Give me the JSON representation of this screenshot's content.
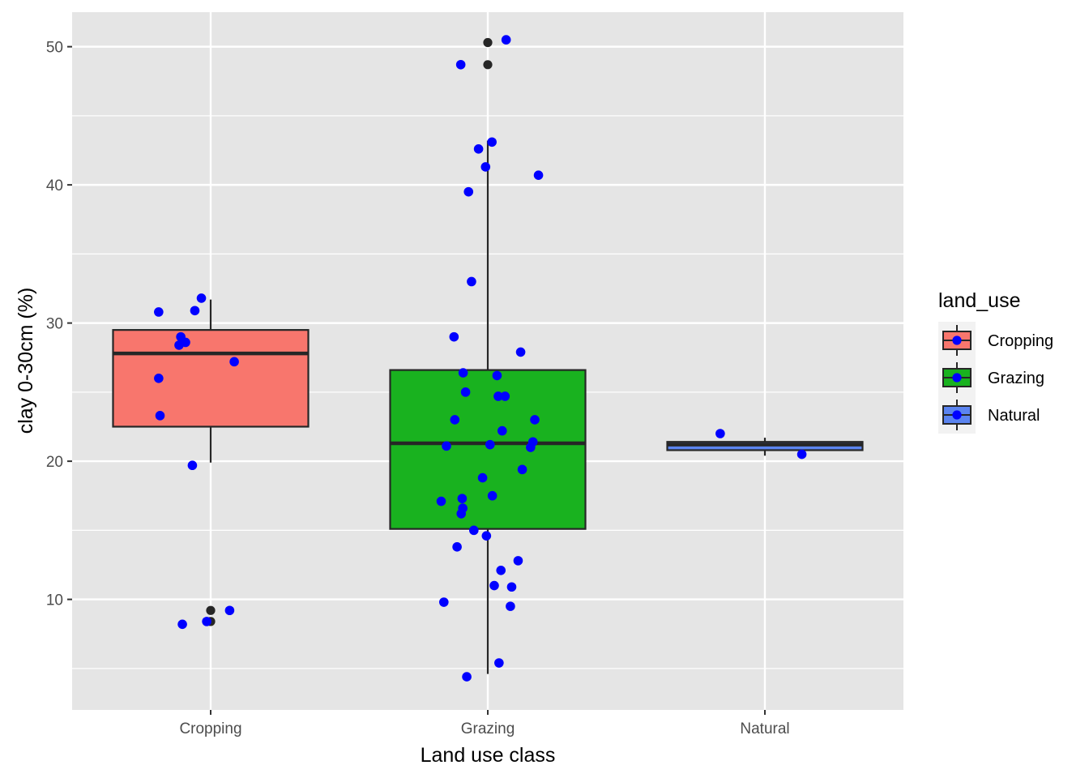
{
  "chart_data": {
    "type": "boxplot",
    "xlabel": "Land use class",
    "ylabel": "clay 0-30cm (%)",
    "ylim": [
      2,
      52.5
    ],
    "yticks": [
      10,
      20,
      30,
      40,
      50
    ],
    "grid": true,
    "legend": {
      "title": "land_use",
      "placement": "right"
    },
    "categories": [
      "Cropping",
      "Grazing",
      "Natural"
    ],
    "colors": {
      "Cropping": "#f8766d",
      "Grazing": "#19b21f",
      "Natural": "#5b84f0",
      "points": "#0000ff",
      "outliers": "#262626",
      "panel": "#e5e5e5",
      "grid": "#ffffff"
    },
    "boxes": [
      {
        "category": "Cropping",
        "q1": 22.5,
        "median": 27.8,
        "q3": 29.5,
        "whisker_low": 19.9,
        "whisker_high": 31.7,
        "outliers": [
          9.2,
          8.4
        ]
      },
      {
        "category": "Grazing",
        "q1": 15.1,
        "median": 21.3,
        "q3": 26.6,
        "whisker_low": 4.6,
        "whisker_high": 43.2,
        "outliers": [
          50.3,
          48.7
        ]
      },
      {
        "category": "Natural",
        "q1": 20.8,
        "median": 21.2,
        "q3": 21.4,
        "whisker_low": 20.4,
        "whisker_high": 21.7,
        "outliers": []
      }
    ],
    "points": [
      {
        "category": "Cropping",
        "values": [
          31.8,
          30.8,
          30.9,
          29.0,
          28.6,
          28.4,
          27.2,
          26.0,
          23.3,
          19.7,
          9.2,
          8.2,
          8.4
        ]
      },
      {
        "category": "Grazing",
        "values": [
          50.5,
          48.7,
          43.1,
          42.6,
          41.3,
          40.7,
          39.5,
          33.0,
          29.0,
          27.9,
          26.4,
          26.2,
          25.0,
          24.7,
          24.7,
          23.0,
          23.0,
          22.2,
          21.4,
          21.2,
          21.1,
          21.0,
          19.4,
          18.8,
          17.5,
          17.3,
          17.1,
          16.6,
          16.2,
          15.0,
          14.6,
          13.8,
          12.8,
          12.1,
          11.0,
          10.9,
          9.8,
          9.5,
          5.4,
          4.4
        ]
      },
      {
        "category": "Natural",
        "values": [
          22.0,
          20.5
        ]
      }
    ]
  }
}
